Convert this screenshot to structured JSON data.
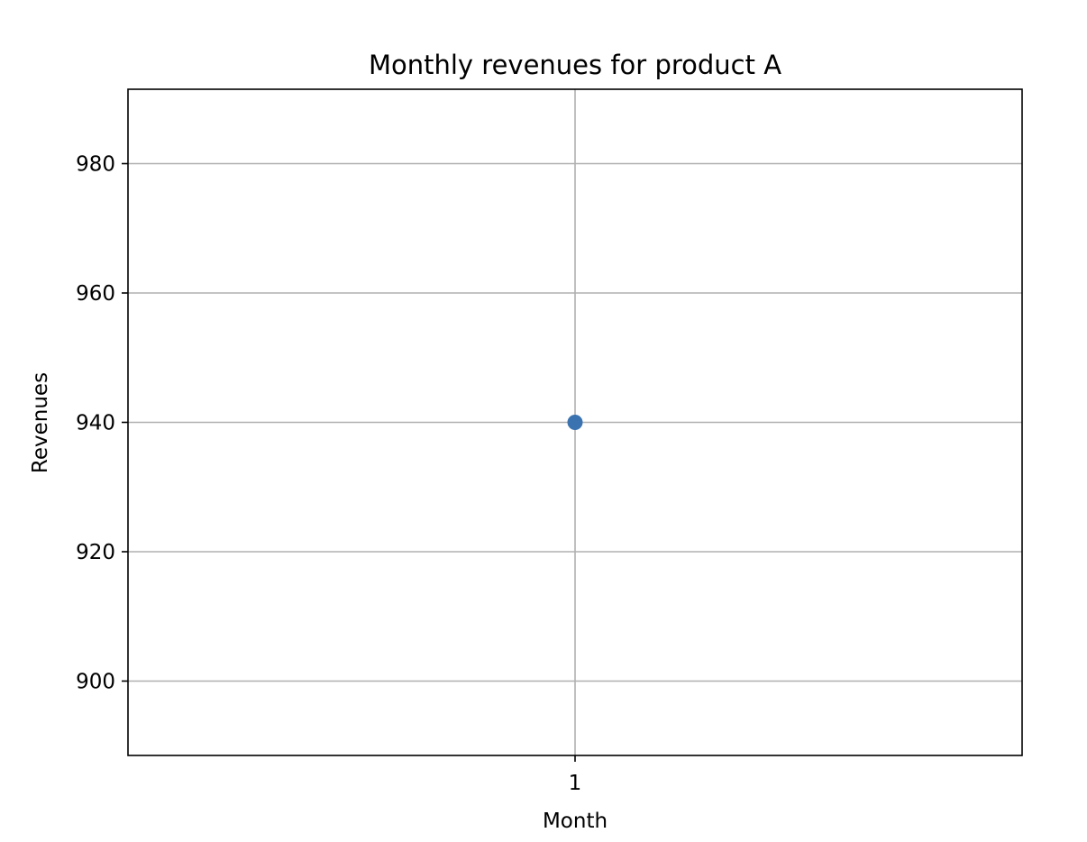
{
  "chart_data": {
    "type": "scatter",
    "title": "Monthly revenues for product A",
    "xlabel": "Month",
    "ylabel": "Revenues",
    "x": [
      1
    ],
    "y": [
      940
    ],
    "x_ticks": [
      1
    ],
    "x_tick_labels": [
      "1"
    ],
    "y_ticks": [
      900,
      920,
      940,
      960,
      980
    ],
    "y_tick_labels": [
      "900",
      "920",
      "940",
      "960",
      "980"
    ],
    "xlim": [
      0.945,
      1.055
    ],
    "ylim": [
      888.5,
      991.5
    ],
    "grid": true,
    "legend": "none",
    "point_color": "#3b73b0"
  }
}
